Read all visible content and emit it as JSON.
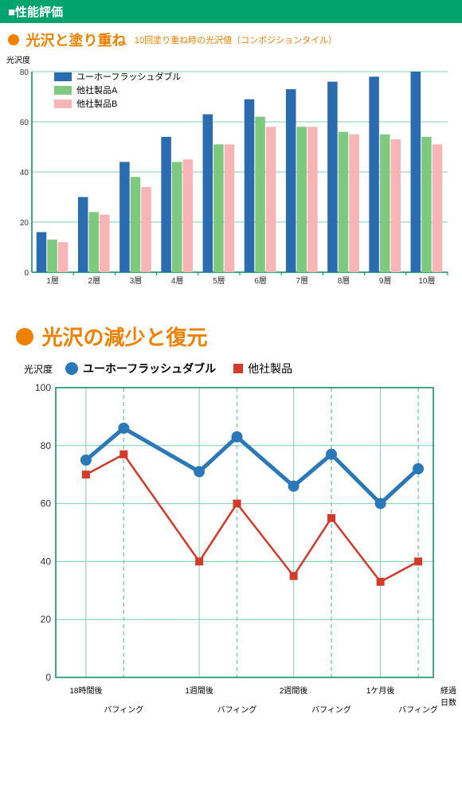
{
  "header": {
    "text": "■性能評価",
    "bg_color": "#00a46c",
    "text_color": "#ffffff"
  },
  "bar_section": {
    "bullet_color": "#f08000",
    "title": "光沢と塗り重ね",
    "title_color": "#f08000",
    "caption": "10回塗り重ね時の光沢値（コンポジションタイル）",
    "caption_color": "#f08000",
    "ylabel": "光沢度",
    "chart": {
      "type": "bar",
      "categories": [
        "1層",
        "2層",
        "3層",
        "4層",
        "5層",
        "6層",
        "7層",
        "8層",
        "9層",
        "10層"
      ],
      "series": [
        {
          "name": "ユーホーフラッシュダブル",
          "color": "#2b6bb0",
          "values": [
            16,
            30,
            44,
            54,
            63,
            69,
            73,
            76,
            78,
            80
          ]
        },
        {
          "name": "他社製品A",
          "color": "#7fc97f",
          "values": [
            13,
            24,
            38,
            44,
            51,
            62,
            58,
            56,
            55,
            54
          ]
        },
        {
          "name": "他社製品B",
          "color": "#f8b5b5",
          "values": [
            12,
            23,
            34,
            45,
            51,
            58,
            58,
            55,
            53,
            51
          ]
        }
      ],
      "ylim": [
        0,
        80
      ],
      "ytick_step": 20,
      "axis_color": "#008f5a",
      "grid_color": "#7fd0ad",
      "label_fontsize": 10,
      "background_color": "#ffffff",
      "bar_group_width": 0.78,
      "bar_gap": 0.02
    }
  },
  "line_section": {
    "bullet_color": "#f08000",
    "title": "光沢の減少と復元",
    "title_color": "#f08000",
    "ylabel": "光沢度",
    "legend": [
      {
        "shape": "circle",
        "color": "#2b78b8",
        "label": "ユーホーフラッシュダブル",
        "bold": true
      },
      {
        "shape": "square",
        "color": "#d43a2a",
        "label": "他社製品",
        "bold": false
      }
    ],
    "chart": {
      "type": "line",
      "ylim": [
        0,
        100
      ],
      "ytick_step": 20,
      "x_positions": [
        0.08,
        0.18,
        0.38,
        0.48,
        0.63,
        0.73,
        0.86,
        0.96
      ],
      "x_major": [
        0.08,
        0.38,
        0.63,
        0.86
      ],
      "x_dashed": [
        0.18,
        0.48,
        0.73,
        0.96
      ],
      "x_labels": [
        {
          "pos": 0.08,
          "line1": "18時間後",
          "line2": ""
        },
        {
          "pos": 0.18,
          "line1": "",
          "line2": "バフィング"
        },
        {
          "pos": 0.38,
          "line1": "1週間後",
          "line2": ""
        },
        {
          "pos": 0.48,
          "line1": "",
          "line2": "バフィング"
        },
        {
          "pos": 0.63,
          "line1": "2週間後",
          "line2": ""
        },
        {
          "pos": 0.73,
          "line1": "",
          "line2": "バフィング"
        },
        {
          "pos": 0.86,
          "line1": "1ケ月後",
          "line2": ""
        },
        {
          "pos": 0.96,
          "line1": "",
          "line2": "バフィング"
        },
        {
          "pos": 1.04,
          "line1": "経過",
          "line2": "日数"
        }
      ],
      "series": [
        {
          "name": "ユーホーフラッシュダブル",
          "color": "#2b78b8",
          "marker": "circle",
          "line_width": 5,
          "marker_size": 7,
          "values": [
            75,
            86,
            71,
            83,
            66,
            77,
            60,
            72
          ]
        },
        {
          "name": "他社製品",
          "color": "#d43a2a",
          "marker": "square",
          "line_width": 2.5,
          "marker_size": 5,
          "values": [
            70,
            77,
            40,
            60,
            35,
            55,
            33,
            40
          ]
        }
      ],
      "axis_color": "#008f5a",
      "grid_color": "#7fd0ad",
      "dashed_color": "#7fd0ad",
      "background_color": "#ffffff"
    }
  }
}
